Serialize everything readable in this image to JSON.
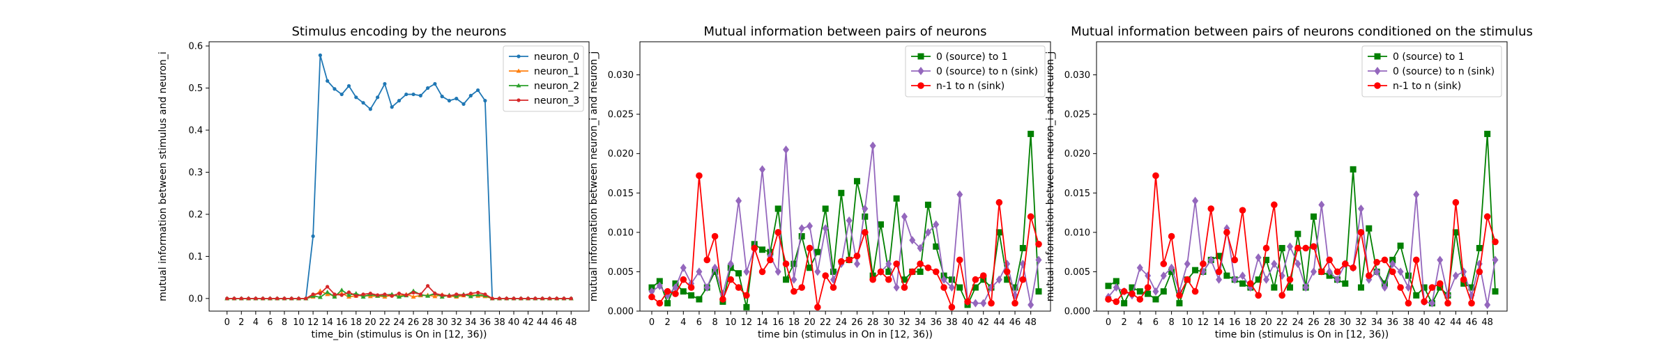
{
  "chart_data": [
    {
      "type": "line",
      "title": "Stimulus encoding by the neurons",
      "xlabel": "time_bin (stimulus is On in [12, 36))",
      "ylabel": "mutual information between stimulus and neuron_i",
      "xlim": [
        -2.5,
        50.5
      ],
      "ylim": [
        -0.03,
        0.61
      ],
      "xticks": [
        "0",
        "2",
        "4",
        "6",
        "8",
        "10",
        "12",
        "14",
        "16",
        "18",
        "20",
        "22",
        "24",
        "26",
        "28",
        "30",
        "32",
        "34",
        "36",
        "38",
        "40",
        "42",
        "44",
        "46",
        "48"
      ],
      "yticks": [
        "0.0",
        "0.1",
        "0.2",
        "0.3",
        "0.4",
        "0.5",
        "0.6"
      ],
      "legend_position": "upper right",
      "x": [
        0,
        1,
        2,
        3,
        4,
        5,
        6,
        7,
        8,
        9,
        10,
        11,
        12,
        13,
        14,
        15,
        16,
        17,
        18,
        19,
        20,
        21,
        22,
        23,
        24,
        25,
        26,
        27,
        28,
        29,
        30,
        31,
        32,
        33,
        34,
        35,
        36,
        37,
        38,
        39,
        40,
        41,
        42,
        43,
        44,
        45,
        46,
        47,
        48
      ],
      "series": [
        {
          "name": "neuron_0",
          "color": "#1f77b4",
          "marker": "point",
          "values": [
            0,
            0,
            0,
            0,
            0,
            0,
            0,
            0,
            0,
            0,
            0,
            0,
            0.148,
            0.578,
            0.517,
            0.498,
            0.485,
            0.505,
            0.478,
            0.465,
            0.45,
            0.478,
            0.51,
            0.455,
            0.47,
            0.485,
            0.485,
            0.482,
            0.5,
            0.51,
            0.48,
            0.47,
            0.475,
            0.462,
            0.482,
            0.495,
            0.47,
            0,
            0,
            0,
            0,
            0,
            0,
            0,
            0,
            0,
            0,
            0,
            0
          ]
        },
        {
          "name": "neuron_1",
          "color": "#ff7f0e",
          "marker": "tri",
          "values": [
            0,
            0,
            0,
            0,
            0,
            0,
            0,
            0,
            0,
            0,
            0,
            0,
            0.004,
            0.018,
            0.01,
            0.007,
            0.012,
            0.004,
            0.006,
            0.008,
            0.005,
            0.006,
            0.004,
            0.008,
            0.006,
            0.01,
            0.004,
            0.007,
            0.008,
            0.005,
            0.009,
            0.006,
            0.004,
            0.007,
            0.01,
            0.006,
            0.005,
            0,
            0,
            0,
            0,
            0,
            0,
            0,
            0,
            0,
            0,
            0,
            0
          ]
        },
        {
          "name": "neuron_2",
          "color": "#2ca02c",
          "marker": "tri",
          "values": [
            0,
            0,
            0,
            0,
            0,
            0,
            0,
            0,
            0,
            0,
            0,
            0,
            0.006,
            0.003,
            0.015,
            0.004,
            0.02,
            0.008,
            0.012,
            0.004,
            0.01,
            0.006,
            0.008,
            0.01,
            0.004,
            0.007,
            0.018,
            0.009,
            0.006,
            0.012,
            0.004,
            0.008,
            0.006,
            0.01,
            0.005,
            0.009,
            0.007,
            0,
            0,
            0,
            0,
            0,
            0,
            0,
            0,
            0,
            0,
            0,
            0
          ]
        },
        {
          "name": "neuron_3",
          "color": "#d62728",
          "marker": "point",
          "values": [
            0,
            0,
            0,
            0,
            0,
            0,
            0,
            0,
            0,
            0,
            0,
            0,
            0.01,
            0.012,
            0.028,
            0.01,
            0.008,
            0.015,
            0.006,
            0.01,
            0.012,
            0.008,
            0.01,
            0.006,
            0.012,
            0.008,
            0.014,
            0.01,
            0.03,
            0.012,
            0.008,
            0.006,
            0.01,
            0.008,
            0.012,
            0.014,
            0.01,
            0,
            0,
            0,
            0,
            0,
            0,
            0,
            0,
            0,
            0,
            0,
            0
          ]
        }
      ]
    },
    {
      "type": "line",
      "title": "Mutual information between pairs of neurons",
      "xlabel": "time bin (stimulus in On in [12, 36))",
      "ylabel": "mutual information between neuron_i and neuron_j",
      "xlim": [
        -1.5,
        50.5
      ],
      "ylim": [
        0,
        0.0342
      ],
      "xticks": [
        "0",
        "2",
        "4",
        "6",
        "8",
        "10",
        "12",
        "14",
        "16",
        "18",
        "20",
        "22",
        "24",
        "26",
        "28",
        "30",
        "32",
        "34",
        "36",
        "38",
        "40",
        "42",
        "44",
        "46",
        "48"
      ],
      "yticks": [
        "0.000",
        "0.005",
        "0.010",
        "0.015",
        "0.020",
        "0.025",
        "0.030"
      ],
      "legend_position": "upper right",
      "x": [
        0,
        1,
        2,
        3,
        4,
        5,
        6,
        7,
        8,
        9,
        10,
        11,
        12,
        13,
        14,
        15,
        16,
        17,
        18,
        19,
        20,
        21,
        22,
        23,
        24,
        25,
        26,
        27,
        28,
        29,
        30,
        31,
        32,
        33,
        34,
        35,
        36,
        37,
        38,
        39,
        40,
        41,
        42,
        43,
        44,
        45,
        46,
        47,
        48,
        49
      ],
      "series": [
        {
          "name": "0 (source) to 1",
          "color": "#008000",
          "marker": "square",
          "values": [
            0.003,
            0.0038,
            0.001,
            0.0035,
            0.0025,
            0.002,
            0.0015,
            0.003,
            0.005,
            0.0012,
            0.0055,
            0.0048,
            0.0005,
            0.0085,
            0.0078,
            0.0075,
            0.013,
            0.004,
            0.006,
            0.0095,
            0.0055,
            0.0075,
            0.013,
            0.005,
            0.015,
            0.0065,
            0.0165,
            0.012,
            0.0045,
            0.011,
            0.005,
            0.0143,
            0.004,
            0.005,
            0.005,
            0.0135,
            0.0082,
            0.0045,
            0.004,
            0.003,
            0.0008,
            0.003,
            0.004,
            0.003,
            0.01,
            0.004,
            0.003,
            0.008,
            0.0225,
            0.0025
          ]
        },
        {
          "name": "0 (source) to n (sink)",
          "color": "#9467bd",
          "marker": "diamond",
          "values": [
            0.0025,
            0.0032,
            0.002,
            0.003,
            0.0055,
            0.0035,
            0.005,
            0.003,
            0.0055,
            0.0022,
            0.006,
            0.014,
            0.005,
            0.008,
            0.018,
            0.007,
            0.005,
            0.0205,
            0.004,
            0.0105,
            0.0108,
            0.005,
            0.0105,
            0.004,
            0.006,
            0.0115,
            0.006,
            0.013,
            0.021,
            0.005,
            0.006,
            0.003,
            0.012,
            0.009,
            0.008,
            0.01,
            0.011,
            0.004,
            0.003,
            0.0148,
            0.0012,
            0.001,
            0.001,
            0.003,
            0.004,
            0.006,
            0.002,
            0.006,
            0.0008,
            0.0065
          ]
        },
        {
          "name": "n-1 to n (sink)",
          "color": "#ff0000",
          "marker": "circle",
          "values": [
            0.0018,
            0.001,
            0.0025,
            0.0022,
            0.004,
            0.003,
            0.0172,
            0.0065,
            0.0095,
            0.0015,
            0.004,
            0.003,
            0.002,
            0.008,
            0.005,
            0.0065,
            0.01,
            0.006,
            0.0025,
            0.003,
            0.008,
            0.0005,
            0.0045,
            0.003,
            0.0063,
            0.0065,
            0.007,
            0.01,
            0.004,
            0.005,
            0.004,
            0.006,
            0.003,
            0.005,
            0.006,
            0.0055,
            0.005,
            0.003,
            0.0005,
            0.0065,
            0.0012,
            0.004,
            0.0045,
            0.001,
            0.0138,
            0.005,
            0.001,
            0.004,
            0.012,
            0.0085
          ]
        }
      ]
    },
    {
      "type": "line",
      "title": "Mutual information between pairs of neurons conditioned on the stimulus",
      "xlabel": "time bin (stimulus is On in [12, 36))",
      "ylabel": "mutual information between neuron_i and neuron_j",
      "xlim": [
        -1.5,
        50.5
      ],
      "ylim": [
        0,
        0.0342
      ],
      "xticks": [
        "0",
        "2",
        "4",
        "6",
        "8",
        "10",
        "12",
        "14",
        "16",
        "18",
        "20",
        "22",
        "24",
        "26",
        "28",
        "30",
        "32",
        "34",
        "36",
        "38",
        "40",
        "42",
        "44",
        "46",
        "48"
      ],
      "yticks": [
        "0.000",
        "0.005",
        "0.010",
        "0.015",
        "0.020",
        "0.025",
        "0.030"
      ],
      "legend_position": "upper right",
      "x": [
        0,
        1,
        2,
        3,
        4,
        5,
        6,
        7,
        8,
        9,
        10,
        11,
        12,
        13,
        14,
        15,
        16,
        17,
        18,
        19,
        20,
        21,
        22,
        23,
        24,
        25,
        26,
        27,
        28,
        29,
        30,
        31,
        32,
        33,
        34,
        35,
        36,
        37,
        38,
        39,
        40,
        41,
        42,
        43,
        44,
        45,
        46,
        47,
        48,
        49
      ],
      "series": [
        {
          "name": "0 (source) to 1",
          "color": "#008000",
          "marker": "square",
          "values": [
            0.0032,
            0.0038,
            0.001,
            0.003,
            0.0025,
            0.0022,
            0.0015,
            0.0025,
            0.005,
            0.001,
            0.004,
            0.0052,
            0.005,
            0.0065,
            0.007,
            0.0045,
            0.004,
            0.0035,
            0.003,
            0.004,
            0.0065,
            0.003,
            0.008,
            0.003,
            0.0098,
            0.003,
            0.012,
            0.005,
            0.0045,
            0.004,
            0.0035,
            0.018,
            0.003,
            0.0105,
            0.005,
            0.0035,
            0.0065,
            0.0083,
            0.0045,
            0.002,
            0.003,
            0.001,
            0.003,
            0.002,
            0.01,
            0.0035,
            0.003,
            0.008,
            0.0225,
            0.0025
          ]
        },
        {
          "name": "0 (source) to n (sink)",
          "color": "#9467bd",
          "marker": "diamond",
          "values": [
            0.0018,
            0.003,
            0.0025,
            0.002,
            0.0055,
            0.0045,
            0.0025,
            0.0045,
            0.0055,
            0.0025,
            0.006,
            0.014,
            0.005,
            0.0065,
            0.004,
            0.0105,
            0.004,
            0.0045,
            0.003,
            0.0068,
            0.004,
            0.006,
            0.0045,
            0.0082,
            0.006,
            0.003,
            0.005,
            0.0135,
            0.005,
            0.004,
            0.006,
            0.0055,
            0.013,
            0.004,
            0.005,
            0.003,
            0.006,
            0.005,
            0.003,
            0.0148,
            0.0012,
            0.001,
            0.0065,
            0.002,
            0.0045,
            0.005,
            0.002,
            0.006,
            0.0008,
            0.0065
          ]
        },
        {
          "name": "n-1 to n (sink)",
          "color": "#ff0000",
          "marker": "circle",
          "values": [
            0.0015,
            0.0012,
            0.0025,
            0.0022,
            0.0015,
            0.003,
            0.0172,
            0.006,
            0.0095,
            0.002,
            0.004,
            0.0025,
            0.006,
            0.013,
            0.005,
            0.01,
            0.0065,
            0.0128,
            0.0035,
            0.002,
            0.008,
            0.0135,
            0.002,
            0.004,
            0.008,
            0.008,
            0.0082,
            0.005,
            0.0065,
            0.005,
            0.006,
            0.0055,
            0.01,
            0.0045,
            0.0062,
            0.0065,
            0.005,
            0.003,
            0.001,
            0.0065,
            0.0012,
            0.003,
            0.0035,
            0.001,
            0.0138,
            0.004,
            0.001,
            0.005,
            0.012,
            0.0088
          ]
        }
      ]
    }
  ]
}
